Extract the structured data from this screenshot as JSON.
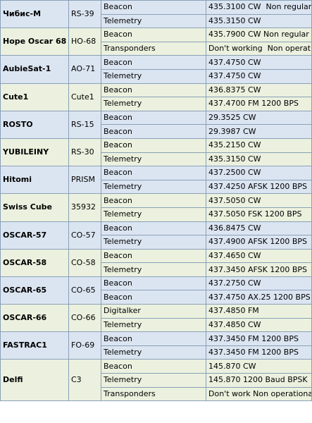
{
  "table": {
    "rows": [
      {
        "name": "Чибис-М",
        "code": "RS-39",
        "entries": [
          {
            "type": "Beacon",
            "value": "435.3100 CW  Non regular"
          },
          {
            "type": "Telemetry",
            "value": "435.3150 CW"
          }
        ]
      },
      {
        "name": "Hope Oscar 68",
        "code": "HO-68",
        "entries": [
          {
            "type": "Beacon",
            "value": "435.7900 CW Non regular"
          },
          {
            "type": "Transponders",
            "value": "Don't working  Non operational"
          }
        ]
      },
      {
        "name": "AubieSat-1",
        "code": "AO-71",
        "entries": [
          {
            "type": "Beacon",
            "value": "437.4750 CW"
          },
          {
            "type": "Telemetry",
            "value": "437.4750 CW"
          }
        ]
      },
      {
        "name": "Cute1",
        "code": "Cute1",
        "entries": [
          {
            "type": "Beacon",
            "value": "436.8375 CW"
          },
          {
            "type": "Telemetry",
            "value": "437.4700 FM 1200 BPS"
          }
        ]
      },
      {
        "name": "ROSTO",
        "code": "RS-15",
        "entries": [
          {
            "type": "Beacon",
            "value": "29.3525 CW"
          },
          {
            "type": "Beacon",
            "value": "29.3987 CW"
          }
        ]
      },
      {
        "name": "YUBILEINY",
        "code": "RS-30",
        "entries": [
          {
            "type": "Beacon",
            "value": "435.2150 CW"
          },
          {
            "type": "Telemetry",
            "value": "435.3150 CW"
          }
        ]
      },
      {
        "name": "Hitomi",
        "code": "PRISM",
        "entries": [
          {
            "type": "Beacon",
            "value": "437.2500 CW"
          },
          {
            "type": "Telemetry",
            "value": "437.4250 AFSK 1200 BPS"
          }
        ]
      },
      {
        "name": "Swiss Cube",
        "code": "35932",
        "entries": [
          {
            "type": "Beacon",
            "value": "437.5050 CW"
          },
          {
            "type": "Telemetry",
            "value": "437.5050 FSK 1200 BPS"
          }
        ]
      },
      {
        "name": "OSCAR-57",
        "code": "CO-57",
        "entries": [
          {
            "type": "Beacon",
            "value": "436.8475 CW"
          },
          {
            "type": "Telemetry",
            "value": "437.4900 AFSK 1200 BPS"
          }
        ]
      },
      {
        "name": "OSCAR-58",
        "code": "CO-58",
        "entries": [
          {
            "type": "Beacon",
            "value": "437.4650 CW"
          },
          {
            "type": "Telemetry",
            "value": "437.3450 AFSK 1200 BPS"
          }
        ]
      },
      {
        "name": "OSCAR-65",
        "code": "CO-65",
        "entries": [
          {
            "type": "Beacon",
            "value": "437.2750 CW"
          },
          {
            "type": "Beacon",
            "value": "437.4750 AX.25 1200 BPS"
          }
        ]
      },
      {
        "name": "OSCAR-66",
        "code": "CO-66",
        "entries": [
          {
            "type": "Digitalker",
            "value": "437.4850 FM"
          },
          {
            "type": "Telemetry",
            "value": "437.4850 CW"
          }
        ]
      },
      {
        "name": "FASTRAC1",
        "code": "FO-69",
        "entries": [
          {
            "type": "Beacon",
            "value": "437.3450 FM 1200 BPS"
          },
          {
            "type": "Telemetry",
            "value": "437.3450 FM 1200 BPS"
          }
        ]
      },
      {
        "name": "Delfi",
        "code": "C3",
        "entries": [
          {
            "type": "Beacon",
            "value": "145.870 CW"
          },
          {
            "type": "Telemetry",
            "value": "145.870 1200 Baud BPSK"
          },
          {
            "type": "Transponders",
            "value": "Don't work Non operational"
          }
        ]
      }
    ]
  }
}
